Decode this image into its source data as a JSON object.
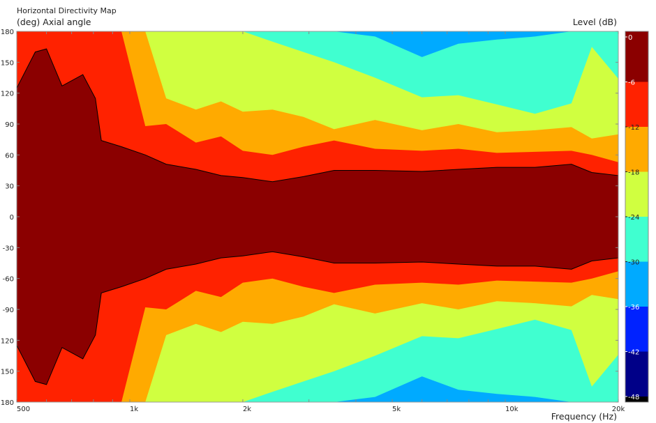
{
  "chart_data": {
    "type": "heatmap",
    "subtype": "filled-contour",
    "title": "Horizontal Directivity Map",
    "ylabel": "(deg)  Axial angle",
    "xlabel": "Frequency  (Hz)",
    "colorbar_label": "Level  (dB)",
    "x_scale": "log",
    "xlim": [
      500,
      20000
    ],
    "ylim": [
      -180,
      180
    ],
    "x_tick_labels": [
      {
        "value": 500,
        "label": "500"
      },
      {
        "value": 1000,
        "label": "1k"
      },
      {
        "value": 2000,
        "label": "2k"
      },
      {
        "value": 5000,
        "label": "5k"
      },
      {
        "value": 10000,
        "label": "10k"
      },
      {
        "value": 20000,
        "label": "20k"
      }
    ],
    "y_tick_labels": [
      {
        "value": 180,
        "label": "180"
      },
      {
        "value": 150,
        "label": "150"
      },
      {
        "value": 120,
        "label": "120"
      },
      {
        "value": 90,
        "label": "90"
      },
      {
        "value": 60,
        "label": "60"
      },
      {
        "value": 30,
        "label": "30"
      },
      {
        "value": 0,
        "label": "0"
      },
      {
        "value": -30,
        "label": "-30"
      },
      {
        "value": -60,
        "label": "-60"
      },
      {
        "value": -90,
        "label": "-90"
      },
      {
        "value": -120,
        "label": "120"
      },
      {
        "value": -150,
        "label": "150"
      },
      {
        "value": -180,
        "label": "180"
      }
    ],
    "levels": [
      0,
      -6,
      -12,
      -18,
      -24,
      -30,
      -36,
      -42,
      -48
    ],
    "level_colors": [
      "#8B0000",
      "#FF2200",
      "#FFAA00",
      "#D0FF40",
      "#40FFD0",
      "#00AAFF",
      "#0022FF",
      "#000088",
      "#000000"
    ],
    "frequencies": [
      500,
      560,
      600,
      660,
      750,
      810,
      840,
      950,
      1100,
      1250,
      1500,
      1750,
      2000,
      2400,
      2900,
      3500,
      4500,
      6000,
      7500,
      9500,
      12000,
      15000,
      17000,
      20000
    ],
    "contour_angles": {
      "-6": [
        125,
        160,
        163,
        127,
        138,
        115,
        74,
        68,
        60,
        51,
        46,
        40,
        38,
        34,
        39,
        45,
        45,
        44,
        46,
        48,
        48,
        51,
        43,
        40
      ],
      "-12": [
        180,
        180,
        180,
        180,
        180,
        180,
        180,
        180,
        88,
        90,
        72,
        78,
        64,
        60,
        68,
        74,
        66,
        64,
        66,
        62,
        63,
        64,
        60,
        53
      ],
      "-18": [
        180,
        180,
        180,
        180,
        180,
        180,
        180,
        180,
        180,
        115,
        104,
        112,
        102,
        104,
        97,
        85,
        94,
        84,
        90,
        82,
        84,
        87,
        76,
        80
      ],
      "-24": [
        180,
        180,
        180,
        180,
        180,
        180,
        180,
        180,
        180,
        180,
        180,
        180,
        180,
        170,
        160,
        150,
        135,
        116,
        118,
        109,
        100,
        110,
        165,
        134
      ],
      "-30": [
        180,
        180,
        180,
        180,
        180,
        180,
        180,
        180,
        180,
        180,
        180,
        180,
        180,
        180,
        180,
        180,
        175,
        155,
        168,
        172,
        175,
        180,
        180,
        180
      ]
    },
    "symmetric_about_zero": true
  }
}
